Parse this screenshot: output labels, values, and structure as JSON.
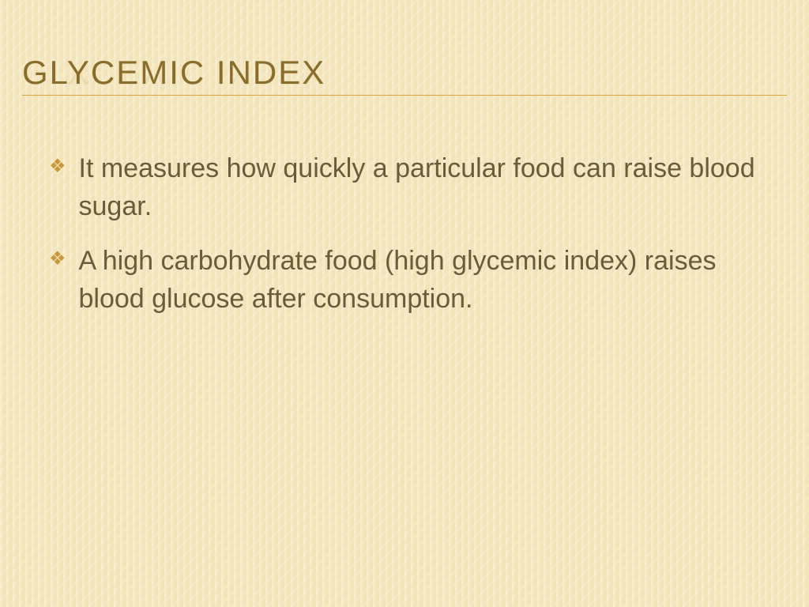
{
  "slide": {
    "title": "GLYCEMIC INDEX",
    "bullets": [
      "It measures how quickly a particular food can raise blood sugar.",
      " A high carbohydrate food (high glycemic index) raises blood glucose after consumption."
    ],
    "style": {
      "background_color": "#f2e4b8",
      "title_color": "#8a6d2a",
      "title_fontsize": 42,
      "title_letter_spacing": 2,
      "underline_color": "#d4a84a",
      "bullet_marker_color": "#c99838",
      "body_text_color": "#6a5b3a",
      "body_fontsize": 34,
      "stripe_color": "rgba(255,255,255,0.25)"
    }
  }
}
